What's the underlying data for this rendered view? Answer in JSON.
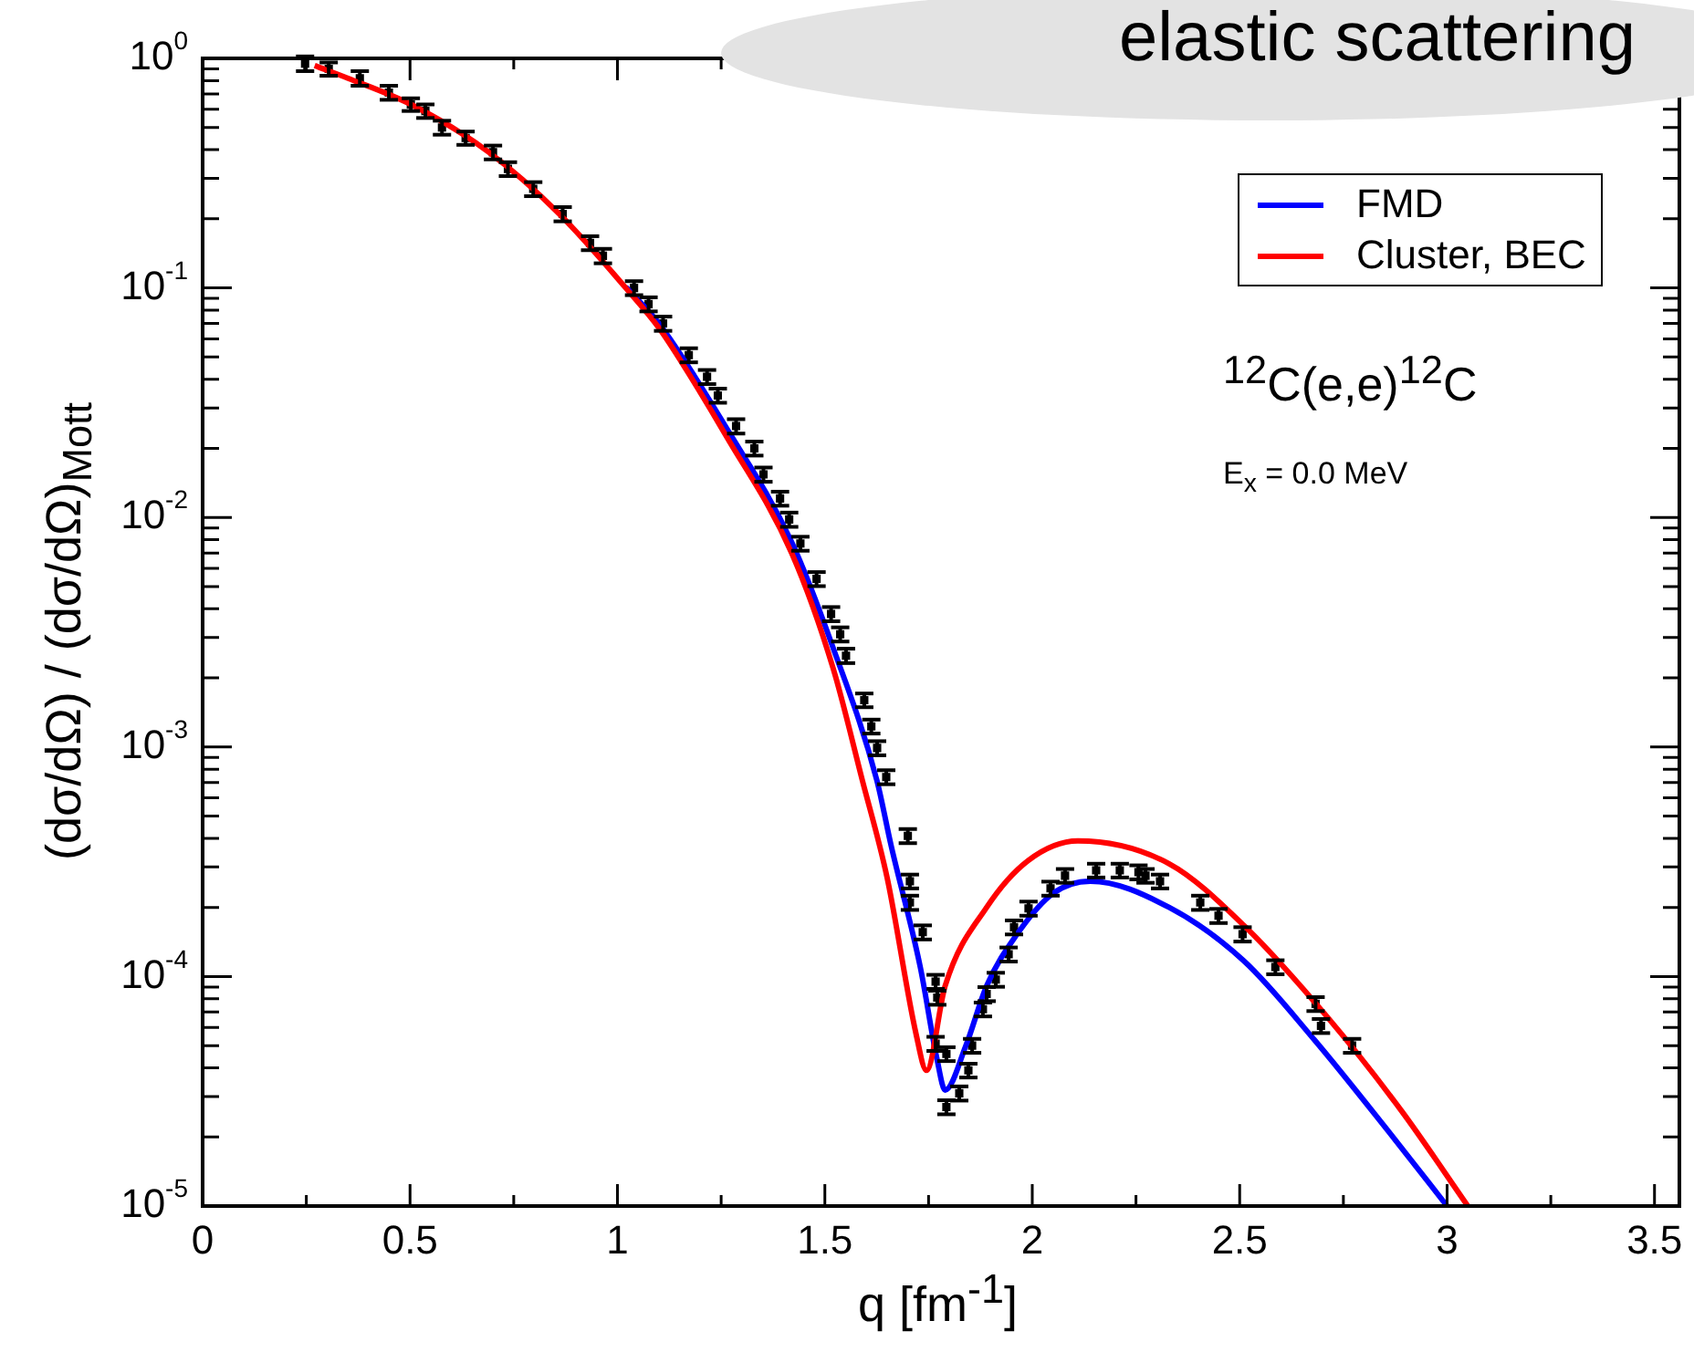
{
  "chart_data": {
    "type": "scatter",
    "title": "elastic scattering",
    "xlabel": "q [fm$^{-1}$]",
    "ylabel": "(dσ/dΩ) / (dσ/dΩ)$_{Mott}$",
    "annotations": [
      "$^{12}$C(e,e)$^{12}$C",
      "E$_{x}$ = 0.0 MeV"
    ],
    "log": "y",
    "legend": "top right",
    "xlim": [
      0,
      3.56
    ],
    "ylim": [
      1e-05,
      1
    ],
    "xticks": [
      0,
      {
        "value": 0.25,
        "label": null
      },
      0.5,
      {
        "value": 0.75,
        "label": null
      },
      1,
      {
        "value": 1.25,
        "label": null
      },
      1.5,
      {
        "value": 1.75,
        "label": null
      },
      2,
      {
        "value": 2.25,
        "label": null
      },
      2.5,
      {
        "value": 2.75,
        "label": null
      },
      3,
      {
        "value": 3.25,
        "label": null
      },
      3.5
    ],
    "yticks": [
      {
        "value": 1e-05,
        "label": "10$^{-5}$"
      },
      {
        "value": 2e-05,
        "label": null
      },
      {
        "value": 3e-05,
        "label": null
      },
      {
        "value": 4e-05,
        "label": null
      },
      {
        "value": 5e-05,
        "label": null
      },
      {
        "value": 6e-05,
        "label": null
      },
      {
        "value": 7e-05,
        "label": null
      },
      {
        "value": 8e-05,
        "label": null
      },
      {
        "value": 9e-05,
        "label": null
      },
      {
        "value": 0.0001,
        "label": "10$^{-4}$"
      },
      {
        "value": 0.0002,
        "label": null
      },
      {
        "value": 0.0003,
        "label": null
      },
      {
        "value": 0.0004,
        "label": null
      },
      {
        "value": 0.0005,
        "label": null
      },
      {
        "value": 0.0006,
        "label": null
      },
      {
        "value": 0.0007,
        "label": null
      },
      {
        "value": 0.0008,
        "label": null
      },
      {
        "value": 0.0009,
        "label": null
      },
      {
        "value": 0.001,
        "label": "10$^{-3}$"
      },
      {
        "value": 0.002,
        "label": null
      },
      {
        "value": 0.003,
        "label": null
      },
      {
        "value": 0.004,
        "label": null
      },
      {
        "value": 0.005,
        "label": null
      },
      {
        "value": 0.006,
        "label": null
      },
      {
        "value": 0.007,
        "label": null
      },
      {
        "value": 0.008,
        "label": null
      },
      {
        "value": 0.009,
        "label": null
      },
      {
        "value": 0.01,
        "label": "10$^{-2}$"
      },
      {
        "value": 0.02,
        "label": null
      },
      {
        "value": 0.03,
        "label": null
      },
      {
        "value": 0.04,
        "label": null
      },
      {
        "value": 0.05,
        "label": null
      },
      {
        "value": 0.06,
        "label": null
      },
      {
        "value": 0.07,
        "label": null
      },
      {
        "value": 0.08,
        "label": null
      },
      {
        "value": 0.09,
        "label": null
      },
      {
        "value": 0.1,
        "label": "10$^{-1}$"
      },
      {
        "value": 0.2,
        "label": null
      },
      {
        "value": 0.3,
        "label": null
      },
      {
        "value": 0.4,
        "label": null
      },
      {
        "value": 0.5,
        "label": null
      },
      {
        "value": 0.6,
        "label": null
      },
      {
        "value": 0.7,
        "label": null
      },
      {
        "value": 0.8,
        "label": null
      },
      {
        "value": 0.9,
        "label": null
      },
      {
        "value": 1,
        "label": "10$^{0}$"
      }
    ],
    "series": [
      {
        "color": "#000000",
        "marker": "square",
        "x": [
          0.247,
          0.304,
          0.379,
          0.449,
          0.502,
          0.537,
          0.577,
          0.634,
          0.7,
          0.736,
          0.797,
          0.868,
          0.934,
          0.965,
          1.04,
          1.075,
          1.11,
          1.172,
          1.216,
          1.242,
          1.286,
          1.33,
          1.352,
          1.392,
          1.414,
          1.441,
          1.48,
          1.515,
          1.537,
          1.551,
          1.595,
          1.612,
          1.626,
          1.648,
          1.7,
          1.705,
          1.705,
          1.736,
          1.767,
          1.771,
          1.767,
          1.793,
          1.793,
          1.824,
          1.846,
          1.855,
          1.881,
          1.89,
          1.912,
          1.943,
          1.956,
          1.991,
          2.044,
          2.079,
          2.154,
          2.211,
          2.256,
          2.273,
          2.308,
          2.405,
          2.449,
          2.507,
          2.586,
          2.683,
          2.696,
          2.771
        ],
        "values": [
          0.95,
          0.9,
          0.82,
          0.71,
          0.63,
          0.59,
          0.5,
          0.45,
          0.39,
          0.33,
          0.27,
          0.21,
          0.157,
          0.138,
          0.1,
          0.085,
          0.07,
          0.051,
          0.041,
          0.034,
          0.025,
          0.02,
          0.0154,
          0.0121,
          0.0098,
          0.0077,
          0.0054,
          0.0038,
          0.0031,
          0.0025,
          0.0016,
          0.00123,
          0.00099,
          0.00074,
          0.00041,
          0.00026,
          0.00021,
          0.000156,
          9.5e-05,
          8.1e-05,
          5.1e-05,
          4.6e-05,
          2.7e-05,
          3.1e-05,
          3.9e-05,
          5e-05,
          7.2e-05,
          8.4e-05,
          9.7e-05,
          0.000125,
          0.000164,
          0.000198,
          0.000242,
          0.000275,
          0.00029,
          0.00029,
          0.000285,
          0.000275,
          0.00026,
          0.00021,
          0.000184,
          0.000153,
          0.00011,
          7.6e-05,
          6.1e-05,
          5e-05
        ],
        "errors": [
          0.07,
          0.06,
          0.06,
          0.05,
          0.04,
          0.04,
          0.035,
          0.03,
          0.027,
          0.023,
          0.019,
          0.015,
          0.011,
          0.01,
          0.007,
          0.006,
          0.005,
          0.0036,
          0.0029,
          0.0024,
          0.0018,
          0.0014,
          0.0011,
          0.00085,
          0.0007,
          0.00054,
          0.00038,
          0.00027,
          0.00022,
          0.00018,
          0.00011,
          8.6e-05,
          7e-05,
          5.2e-05,
          2.9e-05,
          1.8e-05,
          1.5e-05,
          1.1e-05,
          6.7e-06,
          5.7e-06,
          3.6e-06,
          3.2e-06,
          1.9e-06,
          2.2e-06,
          2.7e-06,
          3.5e-06,
          5e-06,
          5.9e-06,
          6.8e-06,
          8.8e-06,
          1.15e-05,
          1.4e-05,
          1.7e-05,
          1.9e-05,
          2e-05,
          2e-05,
          2e-05,
          1.9e-05,
          1.8e-05,
          1.5e-05,
          1.3e-05,
          1.1e-05,
          7.7e-06,
          5.3e-06,
          4.3e-06,
          3.5e-06
        ]
      },
      {
        "type": "line",
        "name": "FMD",
        "color": "#0000ff",
        "x": [
          1.02,
          1.1,
          1.26,
          1.42,
          1.52,
          1.625,
          1.66,
          1.73,
          1.77,
          1.79,
          1.84,
          1.89,
          1.96,
          2.05,
          2.14,
          2.33,
          2.51,
          2.68,
          2.86,
          3.0
        ],
        "values": [
          0.101,
          0.07,
          0.025,
          0.0078,
          0.0027,
          0.00072,
          0.00037,
          0.00011,
          4.4e-05,
          3.2e-05,
          5e-05,
          9.1e-05,
          0.00015,
          0.00023,
          0.00026,
          0.0002,
          0.000117,
          5.3e-05,
          2.1e-05,
          1e-05
        ]
      },
      {
        "type": "line",
        "name": "Cluster, BEC",
        "color": "#ff0000",
        "x": [
          0.27,
          0.35,
          0.51,
          0.69,
          0.86,
          1.02,
          1.1,
          1.15,
          1.26,
          1.42,
          1.52,
          1.59,
          1.65,
          1.72,
          1.745,
          1.79,
          1.89,
          1.99,
          2.11,
          2.33,
          2.51,
          2.71,
          2.89,
          3.05
        ],
        "values": [
          0.93,
          0.82,
          0.62,
          0.39,
          0.21,
          0.1,
          0.067,
          0.049,
          0.023,
          0.007,
          0.0022,
          0.00072,
          0.00027,
          5.6e-05,
          3.9e-05,
          9.1e-05,
          0.0002,
          0.00032,
          0.00039,
          0.00031,
          0.000167,
          6.7e-05,
          2.6e-05,
          1e-05
        ]
      }
    ]
  }
}
